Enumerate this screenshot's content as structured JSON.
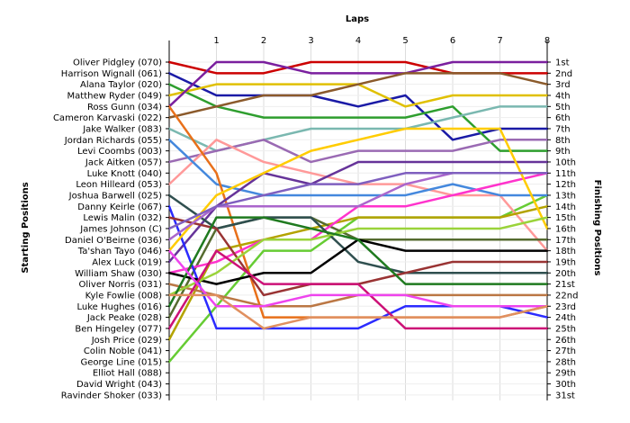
{
  "chart_data": {
    "type": "line",
    "title": "",
    "xlabel": "Laps",
    "ylabel_left": "Starting Positions",
    "ylabel_right": "Finishing Positions",
    "laps": [
      0,
      1,
      2,
      3,
      4,
      5,
      6,
      7,
      8
    ],
    "lap_tick_labels": [
      "1",
      "2",
      "3",
      "4",
      "5",
      "6",
      "7",
      "8"
    ],
    "ylim": [
      1,
      31
    ],
    "grid": true,
    "starting_labels": [
      "Oliver Pidgley (070)",
      "Harrison Wignall (061)",
      "Alana Taylor (020)",
      "Matthew Ryder (049)",
      "Ross Gunn (034)",
      "Cameron Karvaski (022)",
      "Jake Walker (083)",
      "Jordan Richards (055)",
      "Levi Coombs (003)",
      "Jack Aitken (057)",
      "Luke Knott (040)",
      "Leon Hilleard (053)",
      "Joshua Barwell (025)",
      "Danny Keirle (067)",
      "Lewis Malin (032)",
      "James Johnson (C)",
      "Daniel O'Beirne (036)",
      "Ta'shan Tayo (046)",
      "Alex Luck (019)",
      "William Shaw (030)",
      "Oliver Norris (031)",
      "Kyle Fowlie (008)",
      "Luke Hughes (016)",
      "Jack Peake (028)",
      "Ben Hingeley (077)",
      "Josh Price (029)",
      "Colin Noble (041)",
      "George Line (015)",
      "Elliot Hall (088)",
      "David Wright (043)",
      "Ravinder Shoker (033)"
    ],
    "finishing_labels": [
      "1st",
      "2nd",
      "3rd",
      "4th",
      "5th",
      "6th",
      "7th",
      "8th",
      "9th",
      "10th",
      "11th",
      "12th",
      "13th",
      "14th",
      "15th",
      "16th",
      "17th",
      "18th",
      "19th",
      "20th",
      "21st",
      "22nd",
      "23rd",
      "24th",
      "25th",
      "26th",
      "27th",
      "28th",
      "29th",
      "30th",
      "31st"
    ],
    "series": [
      {
        "color": "#cc0000",
        "positions": [
          1,
          2,
          2,
          1,
          1,
          1,
          2,
          2,
          2
        ]
      },
      {
        "color": "#1a1aa6",
        "positions": [
          2,
          4,
          4,
          4,
          5,
          4,
          8,
          7,
          7
        ]
      },
      {
        "color": "#2e9e2e",
        "positions": [
          3,
          5,
          6,
          6,
          6,
          6,
          5,
          9,
          9
        ]
      },
      {
        "color": "#e0c000",
        "positions": [
          4,
          3,
          3,
          3,
          3,
          5,
          4,
          4,
          4
        ]
      },
      {
        "color": "#7a1f9e",
        "positions": [
          5,
          1,
          1,
          2,
          2,
          2,
          1,
          1,
          1
        ]
      },
      {
        "color": "#8b5a2b",
        "positions": [
          6,
          5,
          4,
          4,
          3,
          2,
          2,
          2,
          3
        ]
      },
      {
        "color": "#66cc33",
        "positions": [
          28,
          23,
          18,
          18,
          15,
          15,
          15,
          15,
          13
        ]
      },
      {
        "color": "#7ab8b0",
        "positions": [
          7,
          9,
          8,
          7,
          7,
          7,
          6,
          5,
          5
        ]
      },
      {
        "color": "#9a6ab3",
        "positions": [
          10,
          9,
          8,
          10,
          9,
          9,
          9,
          8,
          8
        ]
      },
      {
        "color": "#ff9999",
        "positions": [
          12,
          8,
          10,
          11,
          12,
          12,
          13,
          13,
          18
        ]
      },
      {
        "color": "#4488dd",
        "positions": [
          8,
          12,
          13,
          13,
          13,
          13,
          12,
          13,
          13
        ]
      },
      {
        "color": "#e8701a",
        "positions": [
          5,
          11,
          24,
          24,
          24,
          24,
          24,
          24,
          23
        ]
      },
      {
        "color": "#b3a300",
        "positions": [
          26,
          18,
          17,
          16,
          15,
          15,
          15,
          15,
          14
        ]
      },
      {
        "color": "#556b2f",
        "positions": [
          24,
          16,
          15,
          15,
          17,
          17,
          17,
          17,
          17
        ]
      },
      {
        "color": "#663399",
        "positions": [
          19,
          14,
          11,
          12,
          10,
          10,
          10,
          10,
          10
        ]
      },
      {
        "color": "#ff33cc",
        "positions": [
          20,
          19,
          17,
          17,
          14,
          14,
          13,
          12,
          11
        ]
      },
      {
        "color": "#2f4f4f",
        "positions": [
          13,
          16,
          15,
          15,
          19,
          20,
          20,
          20,
          20
        ]
      },
      {
        "color": "#2b2bff",
        "positions": [
          14,
          25,
          25,
          25,
          25,
          23,
          23,
          23,
          24
        ]
      },
      {
        "color": "#993333",
        "positions": [
          15,
          16,
          22,
          21,
          21,
          20,
          19,
          19,
          19
        ]
      },
      {
        "color": "#000000",
        "positions": [
          20,
          21,
          20,
          20,
          17,
          18,
          18,
          18,
          18
        ]
      },
      {
        "color": "#bb7744",
        "positions": [
          21,
          22,
          23,
          23,
          22,
          22,
          22,
          22,
          22
        ]
      },
      {
        "color": "#ffcc00",
        "positions": [
          18,
          13,
          11,
          9,
          8,
          7,
          7,
          7,
          16
        ]
      },
      {
        "color": "#9ad33a",
        "positions": [
          22,
          20,
          17,
          17,
          16,
          16,
          16,
          16,
          15
        ]
      },
      {
        "color": "#aa66cc",
        "positions": [
          17,
          14,
          14,
          14,
          14,
          12,
          11,
          11,
          11
        ]
      },
      {
        "color": "#cc1177",
        "positions": [
          25,
          18,
          21,
          21,
          21,
          25,
          25,
          25,
          25
        ]
      },
      {
        "color": "#1f7a1f",
        "positions": [
          23,
          15,
          15,
          16,
          17,
          21,
          21,
          21,
          21
        ]
      },
      {
        "color": "#ee44ee",
        "positions": [
          18,
          23,
          23,
          22,
          22,
          22,
          23,
          23,
          23
        ]
      },
      {
        "color": "#e09060",
        "positions": [
          22,
          22,
          25,
          24,
          24,
          24,
          24,
          24,
          23
        ]
      },
      {
        "color": "#7f5fbf",
        "positions": [
          16,
          14,
          13,
          12,
          12,
          11,
          11,
          11,
          11
        ]
      }
    ]
  }
}
